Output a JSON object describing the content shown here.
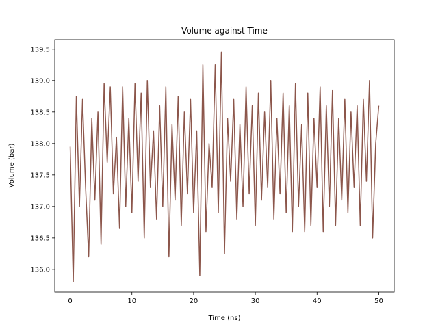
{
  "chart_data": {
    "type": "line",
    "title": "Volume against Time",
    "xlabel": "Time (ns)",
    "ylabel": "Volume  (bar)",
    "x": [
      0,
      0.5,
      1,
      1.5,
      2,
      2.5,
      3,
      3.5,
      4,
      4.5,
      5,
      5.5,
      6,
      6.5,
      7,
      7.5,
      8,
      8.5,
      9,
      9.5,
      10,
      10.5,
      11,
      11.5,
      12,
      12.5,
      13,
      13.5,
      14,
      14.5,
      15,
      15.5,
      16,
      16.5,
      17,
      17.5,
      18,
      18.5,
      19,
      19.5,
      20,
      20.5,
      21,
      21.5,
      22,
      22.5,
      23,
      23.5,
      24,
      24.5,
      25,
      25.5,
      26,
      26.5,
      27,
      27.5,
      28,
      28.5,
      29,
      29.5,
      30,
      30.5,
      31,
      31.5,
      32,
      32.5,
      33,
      33.5,
      34,
      34.5,
      35,
      35.5,
      36,
      36.5,
      37,
      37.5,
      38,
      38.5,
      39,
      39.5,
      40,
      40.5,
      41,
      41.5,
      42,
      42.5,
      43,
      43.5,
      44,
      44.5,
      45,
      45.5,
      46,
      46.5,
      47,
      47.5,
      48,
      48.5,
      49,
      49.5,
      50
    ],
    "series": [
      {
        "name": "Volume",
        "color": "#8c564b",
        "values": [
          137.95,
          135.8,
          138.75,
          137.0,
          138.7,
          137.3,
          136.2,
          138.4,
          137.1,
          138.5,
          136.4,
          138.95,
          137.7,
          138.9,
          137.2,
          138.1,
          136.65,
          138.9,
          137.0,
          138.4,
          136.9,
          138.95,
          137.4,
          138.8,
          136.5,
          139.0,
          137.3,
          138.2,
          136.8,
          138.6,
          137.0,
          138.9,
          136.2,
          138.3,
          137.1,
          138.75,
          136.7,
          138.5,
          137.2,
          138.7,
          136.9,
          138.2,
          135.9,
          139.25,
          136.6,
          138.0,
          137.3,
          139.25,
          136.9,
          139.45,
          136.25,
          138.4,
          137.4,
          138.7,
          136.8,
          138.3,
          137.0,
          138.9,
          137.2,
          138.6,
          136.7,
          138.8,
          137.1,
          138.5,
          137.3,
          139.0,
          136.8,
          138.4,
          137.2,
          138.8,
          136.9,
          138.6,
          136.6,
          138.95,
          137.0,
          138.3,
          136.6,
          138.8,
          136.7,
          138.4,
          137.3,
          138.9,
          136.6,
          138.6,
          137.0,
          138.85,
          136.7,
          138.4,
          137.1,
          138.7,
          136.9,
          138.5,
          137.3,
          138.6,
          136.7,
          138.7,
          137.4,
          139.0,
          136.5,
          138.0,
          138.6
        ]
      }
    ],
    "xlim": [
      -2.5,
      52.5
    ],
    "xticks": [
      0,
      10,
      20,
      30,
      40,
      50
    ],
    "ylim": [
      135.64,
      139.65
    ],
    "yticks": [
      {
        "value": 136,
        "label": "136.0"
      },
      136.5,
      {
        "value": 137,
        "label": "137.0"
      },
      137.5,
      {
        "value": 138,
        "label": "138.0"
      },
      138.5,
      {
        "value": 139,
        "label": "139.0"
      },
      139.5
    ]
  }
}
